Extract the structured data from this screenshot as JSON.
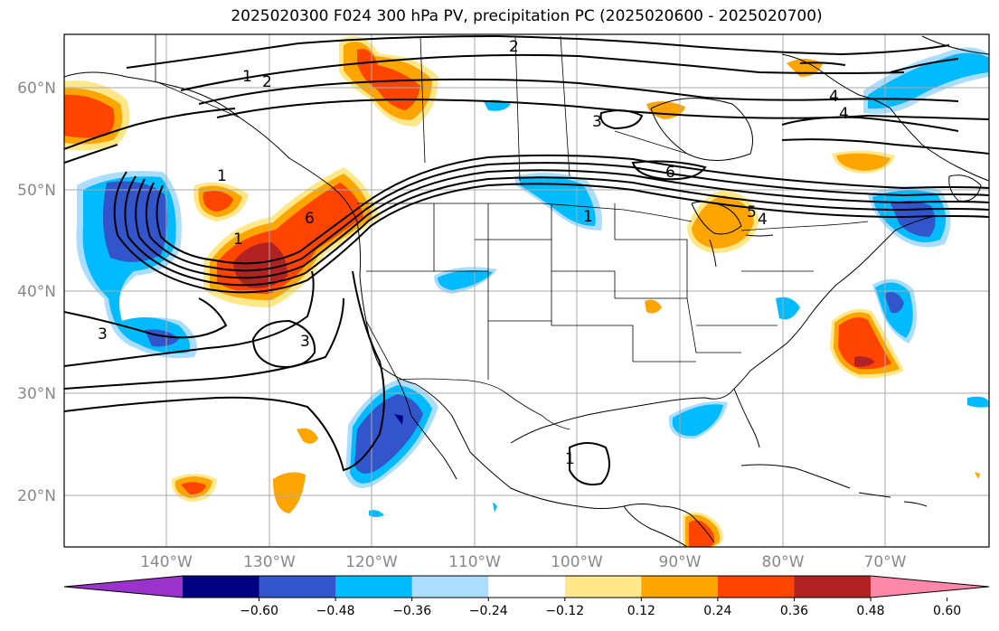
{
  "title": "2025020300 F024 300 hPa PV, precipitation PC (2025020600 - 2025020700)",
  "map": {
    "lat_labels": [
      "60°N",
      "50°N",
      "40°N",
      "30°N",
      "20°N"
    ],
    "lon_labels": [
      "140°W",
      "130°W",
      "120°W",
      "110°W",
      "100°W",
      "90°W",
      "80°W",
      "70°W"
    ],
    "contour_labels": [
      "1",
      "2",
      "2",
      "3",
      "3",
      "3",
      "4",
      "4",
      "5",
      "6",
      "6",
      "1",
      "1",
      "1",
      "4",
      "1"
    ]
  },
  "colorbar": {
    "ticks": [
      "−0.60",
      "−0.48",
      "−0.36",
      "−0.24",
      "−0.12",
      "0.12",
      "0.24",
      "0.36",
      "0.48",
      "0.60"
    ],
    "colors": [
      "#9933cc",
      "#000080",
      "#3355cc",
      "#00bbff",
      "#aaddff",
      "#ffffff",
      "#ffe88a",
      "#ffa500",
      "#ff4400",
      "#b22222",
      "#ff88aa"
    ]
  }
}
